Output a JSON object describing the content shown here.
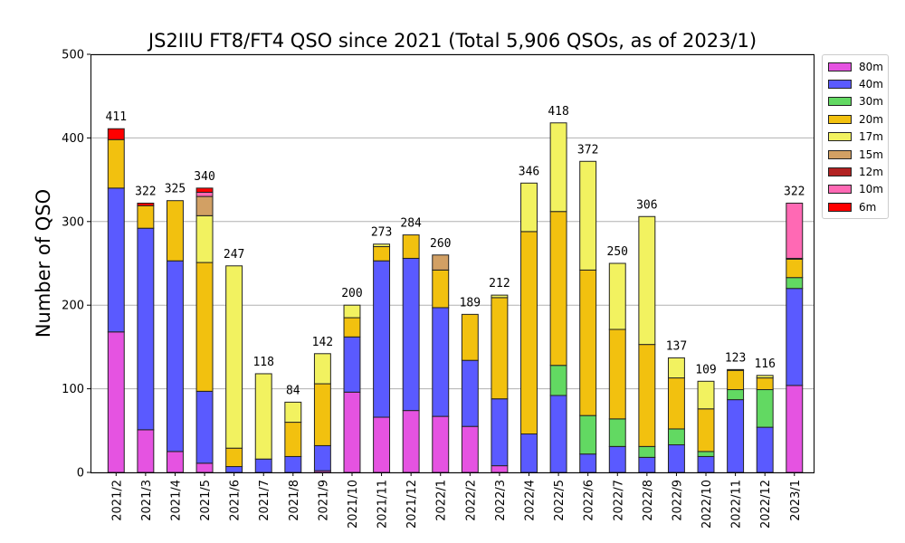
{
  "chart_data": {
    "type": "bar",
    "stacked": true,
    "title": "JS2IIU FT8/FT4 QSO since 2021 (Total 5,906 QSOs, as of 2023/1)",
    "xlabel": "",
    "ylabel": "Number of QSO",
    "ylim": [
      0,
      500
    ],
    "yticks": [
      0,
      100,
      200,
      300,
      400,
      500
    ],
    "grid": "horizontal",
    "legend_position": "outside-right-top",
    "categories": [
      "2021/2",
      "2021/3",
      "2021/4",
      "2021/5",
      "2021/6",
      "2021/7",
      "2021/8",
      "2021/9",
      "2021/10",
      "2021/11",
      "2021/12",
      "2022/1",
      "2022/2",
      "2022/3",
      "2022/4",
      "2022/5",
      "2022/6",
      "2022/7",
      "2022/8",
      "2022/9",
      "2022/10",
      "2022/11",
      "2022/12",
      "2023/1"
    ],
    "totals": [
      411,
      322,
      325,
      340,
      247,
      118,
      84,
      142,
      200,
      273,
      284,
      260,
      189,
      212,
      346,
      418,
      372,
      250,
      306,
      137,
      109,
      123,
      116,
      322
    ],
    "series": [
      {
        "name": "80m",
        "color": "#e553e1",
        "values": [
          168,
          51,
          25,
          11,
          0,
          0,
          0,
          2,
          96,
          66,
          74,
          67,
          55,
          8,
          0,
          0,
          0,
          0,
          0,
          0,
          0,
          0,
          0,
          104
        ]
      },
      {
        "name": "40m",
        "color": "#5a5aff",
        "values": [
          172,
          241,
          228,
          86,
          7,
          16,
          19,
          30,
          66,
          187,
          182,
          130,
          79,
          80,
          46,
          92,
          22,
          31,
          18,
          33,
          19,
          87,
          54,
          116
        ]
      },
      {
        "name": "30m",
        "color": "#62d962",
        "values": [
          0,
          0,
          0,
          0,
          0,
          0,
          0,
          0,
          0,
          0,
          0,
          0,
          0,
          0,
          0,
          36,
          46,
          33,
          13,
          19,
          6,
          12,
          45,
          13
        ]
      },
      {
        "name": "20m",
        "color": "#f2c10f",
        "values": [
          58,
          27,
          72,
          154,
          22,
          0,
          41,
          74,
          23,
          17,
          28,
          45,
          55,
          121,
          242,
          184,
          174,
          107,
          122,
          61,
          51,
          23,
          14,
          22
        ]
      },
      {
        "name": "17m",
        "color": "#f2f260",
        "values": [
          0,
          0,
          0,
          56,
          218,
          102,
          24,
          36,
          15,
          3,
          0,
          0,
          0,
          3,
          58,
          106,
          130,
          79,
          153,
          24,
          33,
          1,
          3,
          0
        ]
      },
      {
        "name": "15m",
        "color": "#d2a064",
        "values": [
          0,
          0,
          0,
          23,
          0,
          0,
          0,
          0,
          0,
          0,
          0,
          18,
          0,
          0,
          0,
          0,
          0,
          0,
          0,
          0,
          0,
          0,
          0,
          0
        ]
      },
      {
        "name": "12m",
        "color": "#b22222",
        "values": [
          0,
          0,
          0,
          0,
          0,
          0,
          0,
          0,
          0,
          0,
          0,
          0,
          0,
          0,
          0,
          0,
          0,
          0,
          0,
          0,
          0,
          0,
          0,
          1
        ]
      },
      {
        "name": "10m",
        "color": "#ff69b4",
        "values": [
          0,
          0,
          0,
          5,
          0,
          0,
          0,
          0,
          0,
          0,
          0,
          0,
          0,
          0,
          0,
          0,
          0,
          0,
          0,
          0,
          0,
          0,
          0,
          66
        ]
      },
      {
        "name": "6m",
        "color": "#ff0000",
        "values": [
          13,
          3,
          0,
          5,
          0,
          0,
          0,
          0,
          0,
          0,
          0,
          0,
          0,
          0,
          0,
          0,
          0,
          0,
          0,
          0,
          0,
          0,
          0,
          0
        ]
      }
    ]
  }
}
